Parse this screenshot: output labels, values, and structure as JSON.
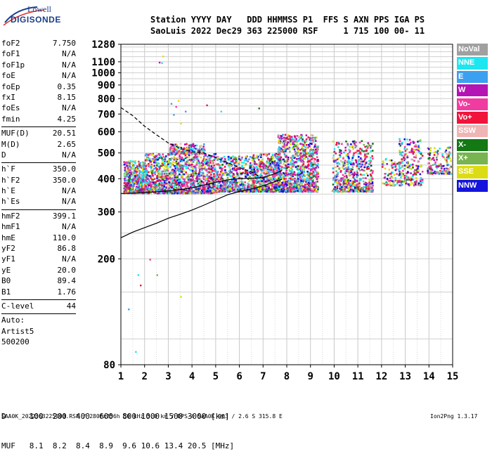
{
  "logo": {
    "line1": "Lowell",
    "line2": "DIGISONDE"
  },
  "header": {
    "line1": "Station YYYY DAY   DDD HHMMSS P1  FFS S AXN PPS IGA PS",
    "line2": "SaoLuis 2022 Dec29 363 225000 RSF     1 715 100 00- 11"
  },
  "params": {
    "group1": [
      {
        "k": "foF2",
        "v": "7.750"
      },
      {
        "k": "foF1",
        "v": "N/A"
      },
      {
        "k": "foF1p",
        "v": "N/A"
      },
      {
        "k": "foE",
        "v": "N/A"
      },
      {
        "k": "foEp",
        "v": "0.35"
      },
      {
        "k": "fxI",
        "v": "8.15"
      },
      {
        "k": "foEs",
        "v": "N/A"
      },
      {
        "k": "fmin",
        "v": "4.25"
      }
    ],
    "group2": [
      {
        "k": "MUF(D)",
        "v": "20.51"
      },
      {
        "k": "M(D)",
        "v": "2.65"
      },
      {
        "k": "D",
        "v": "N/A"
      }
    ],
    "group3": [
      {
        "k": "h`F",
        "v": "350.0"
      },
      {
        "k": "h`F2",
        "v": "350.0"
      },
      {
        "k": "h`E",
        "v": "N/A"
      },
      {
        "k": "h`Es",
        "v": "N/A"
      }
    ],
    "group4": [
      {
        "k": "hmF2",
        "v": "399.1"
      },
      {
        "k": "hmF1",
        "v": "N/A"
      },
      {
        "k": "hmE",
        "v": "110.0"
      },
      {
        "k": "yF2",
        "v": "86.8"
      },
      {
        "k": "yF1",
        "v": "N/A"
      },
      {
        "k": "yE",
        "v": "20.0"
      },
      {
        "k": "B0",
        "v": "89.4"
      },
      {
        "k": "B1",
        "v": "1.76"
      }
    ],
    "group5": [
      {
        "k": "C-level",
        "v": "44"
      }
    ],
    "autoscale": {
      "line1": "Auto:",
      "line2": "Artist5",
      "line3": "500200"
    }
  },
  "legend": [
    {
      "label": "NoVal",
      "color": "#a0a0a0"
    },
    {
      "label": "NNE",
      "color": "#1ee6f0"
    },
    {
      "label": "E",
      "color": "#3ca0f0"
    },
    {
      "label": "W",
      "color": "#b414b4"
    },
    {
      "label": "Vo-",
      "color": "#f03ca0"
    },
    {
      "label": "Vo+",
      "color": "#f0143c"
    },
    {
      "label": "SSW",
      "color": "#f0b4b4"
    },
    {
      "label": "X-",
      "color": "#147814"
    },
    {
      "label": "X+",
      "color": "#78b450"
    },
    {
      "label": "SSE",
      "color": "#dcdc14"
    },
    {
      "label": "NNW",
      "color": "#1414dc"
    }
  ],
  "muf_table": {
    "line1": "D     100  200  400  600  800 1000 1500 3000 [km]",
    "line2": "MUF   8.1  8.2  8.4  8.9  9.6 10.6 13.4 20.5 [MHz]"
  },
  "footer": {
    "left": "SAA0K_2022363225000.RSF / 280fx256h 50 kHz 5.0 km / DPS-4 SAA0K 903 / 2.6 S 315.8 E",
    "right": "Ion2Png 1.3.17"
  },
  "chart_data": {
    "type": "scatter",
    "title": "",
    "xlabel": "",
    "ylabel": "",
    "xlim": [
      1,
      15
    ],
    "ylim": [
      80,
      1280
    ],
    "x_ticks": [
      1,
      2,
      3,
      4,
      5,
      6,
      7,
      8,
      9,
      10,
      11,
      12,
      13,
      14,
      15
    ],
    "y_ticks": [
      80,
      200,
      300,
      400,
      500,
      600,
      700,
      800,
      900,
      1000,
      1100,
      1280
    ],
    "y_scale": "log",
    "grid": true,
    "legend": "right",
    "echo_clusters": [
      {
        "x": [
          1.1,
          2.0
        ],
        "y": [
          355,
          470
        ],
        "n": 500
      },
      {
        "x": [
          2.0,
          3.5
        ],
        "y": [
          355,
          500
        ],
        "n": 700
      },
      {
        "x": [
          3.5,
          5.0
        ],
        "y": [
          355,
          500
        ],
        "n": 650
      },
      {
        "x": [
          5.0,
          6.5
        ],
        "y": [
          360,
          490
        ],
        "n": 500
      },
      {
        "x": [
          6.5,
          7.7
        ],
        "y": [
          360,
          500
        ],
        "n": 550
      },
      {
        "x": [
          7.6,
          9.3
        ],
        "y": [
          360,
          590
        ],
        "n": 900
      },
      {
        "x": [
          9.9,
          11.6
        ],
        "y": [
          360,
          560
        ],
        "n": 550
      },
      {
        "x": [
          12.0,
          12.7
        ],
        "y": [
          380,
          480
        ],
        "n": 80
      },
      {
        "x": [
          12.7,
          13.7
        ],
        "y": [
          380,
          570
        ],
        "n": 220
      },
      {
        "x": [
          13.9,
          14.9
        ],
        "y": [
          420,
          530
        ],
        "n": 150
      },
      {
        "x": [
          3.0,
          4.5
        ],
        "y": [
          500,
          545
        ],
        "n": 180
      }
    ],
    "sparse_echoes": [
      {
        "x": 2.6,
        "y": 1100
      },
      {
        "x": 2.7,
        "y": 1095
      },
      {
        "x": 2.75,
        "y": 1160
      },
      {
        "x": 3.1,
        "y": 770
      },
      {
        "x": 3.3,
        "y": 750
      },
      {
        "x": 3.7,
        "y": 720
      },
      {
        "x": 3.2,
        "y": 700
      },
      {
        "x": 4.6,
        "y": 760
      },
      {
        "x": 3.5,
        "y": 650
      },
      {
        "x": 6.8,
        "y": 740
      },
      {
        "x": 1.6,
        "y": 90
      },
      {
        "x": 1.7,
        "y": 175
      },
      {
        "x": 1.8,
        "y": 160
      },
      {
        "x": 2.2,
        "y": 200
      },
      {
        "x": 2.5,
        "y": 175
      },
      {
        "x": 3.5,
        "y": 145
      },
      {
        "x": 1.3,
        "y": 130
      },
      {
        "x": 3.4,
        "y": 790
      },
      {
        "x": 5.2,
        "y": 720
      }
    ],
    "series": [
      {
        "style": "solid",
        "x": [
          1.0,
          1.5,
          2.0,
          2.5,
          3.0,
          3.5,
          4.0,
          4.5,
          5.0,
          5.5,
          6.0,
          6.5,
          7.0,
          7.5,
          7.8
        ],
        "y": [
          240,
          252,
          262,
          272,
          284,
          294,
          305,
          318,
          333,
          348,
          358,
          366,
          376,
          390,
          398
        ]
      },
      {
        "style": "solid",
        "x": [
          1.0,
          1.5,
          2.0,
          2.5,
          3.0,
          3.5,
          4.0,
          4.5,
          5.0,
          5.5,
          6.0,
          6.5,
          7.0,
          7.5,
          7.8
        ],
        "y": [
          352,
          353,
          355,
          357,
          360,
          364,
          370,
          378,
          388,
          396,
          400,
          402,
          404,
          418,
          430
        ]
      },
      {
        "style": "dashed",
        "x": [
          1.0,
          1.5,
          2.0,
          2.5,
          3.0,
          3.5,
          4.0,
          4.5,
          5.0,
          5.5,
          6.0,
          6.5,
          7.0
        ],
        "y": [
          740,
          690,
          630,
          585,
          545,
          520,
          505,
          500,
          480,
          460,
          440,
          425,
          400
        ]
      }
    ]
  }
}
